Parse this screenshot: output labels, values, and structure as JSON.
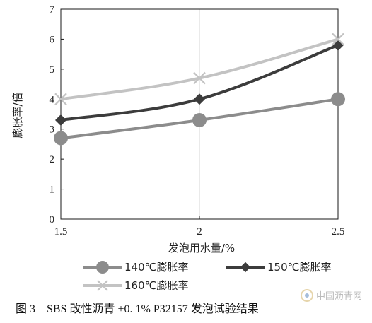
{
  "chart_data": {
    "type": "line",
    "x": [
      1.5,
      2,
      2.5
    ],
    "x_tick_labels": [
      "1.5",
      "2",
      "2.5"
    ],
    "y_ticks": [
      0,
      1,
      2,
      3,
      4,
      5,
      6,
      7
    ],
    "xlim": [
      1.5,
      2.5
    ],
    "ylim": [
      0,
      7
    ],
    "xlabel": "发泡用水量/%",
    "ylabel": "膨胀率/倍",
    "grid": true,
    "legend_position": "bottom",
    "series": [
      {
        "name": "140℃膨胀率",
        "values": [
          2.7,
          3.3,
          4.0
        ],
        "color": "#8c8c8c",
        "marker": "circle"
      },
      {
        "name": "150℃膨胀率",
        "values": [
          3.3,
          4.0,
          5.8
        ],
        "color": "#3c3c3c",
        "marker": "diamond"
      },
      {
        "name": "160℃膨胀率",
        "values": [
          4.0,
          4.7,
          6.0
        ],
        "color": "#c3c3c3",
        "marker": "x"
      }
    ]
  },
  "caption": "图 3　SBS 改性沥青 +0. 1%  P32157 发泡试验结果",
  "watermark": "中国沥青网"
}
